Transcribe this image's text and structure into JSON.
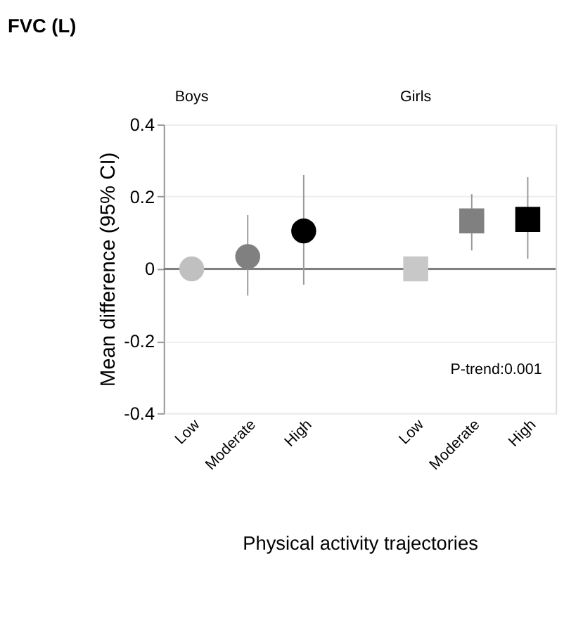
{
  "chart_data": {
    "type": "scatter",
    "title": "FVC (L)",
    "xlabel": "Physical activity trajectories",
    "ylabel": "Mean difference (95% CI)",
    "categories": [
      "Low",
      "Moderate",
      "High",
      null,
      "Low",
      "Moderate",
      "High"
    ],
    "series": [
      {
        "marker": "circle",
        "colors": [
          "#c0c0c0",
          "#808080",
          "#000000",
          null,
          null,
          null,
          null
        ],
        "values": [
          0,
          0.034,
          0.105,
          null,
          null,
          null,
          null
        ],
        "errors": [
          null,
          [
            -0.074,
            0.149
          ],
          [
            -0.044,
            0.26
          ],
          null,
          null,
          null,
          null
        ]
      },
      {
        "marker": "square",
        "colors": [
          null,
          null,
          null,
          null,
          "#c8c8c8",
          "#808080",
          "#000000"
        ],
        "values": [
          null,
          null,
          null,
          null,
          0,
          0.133,
          0.137
        ],
        "errors": [
          null,
          null,
          null,
          null,
          null,
          [
            0.051,
            0.207
          ],
          [
            0.028,
            0.254
          ]
        ]
      }
    ],
    "ylim": [
      -0.4,
      0.4
    ],
    "yticks": [
      -0.4,
      -0.2,
      0,
      0.2,
      0.4
    ],
    "grid": "y",
    "ref_lines": [
      {
        "axis": "y",
        "value": 0,
        "color": "#808080"
      }
    ],
    "annotations": [
      "Boys",
      "Girls",
      "P-trend:0.001"
    ]
  }
}
